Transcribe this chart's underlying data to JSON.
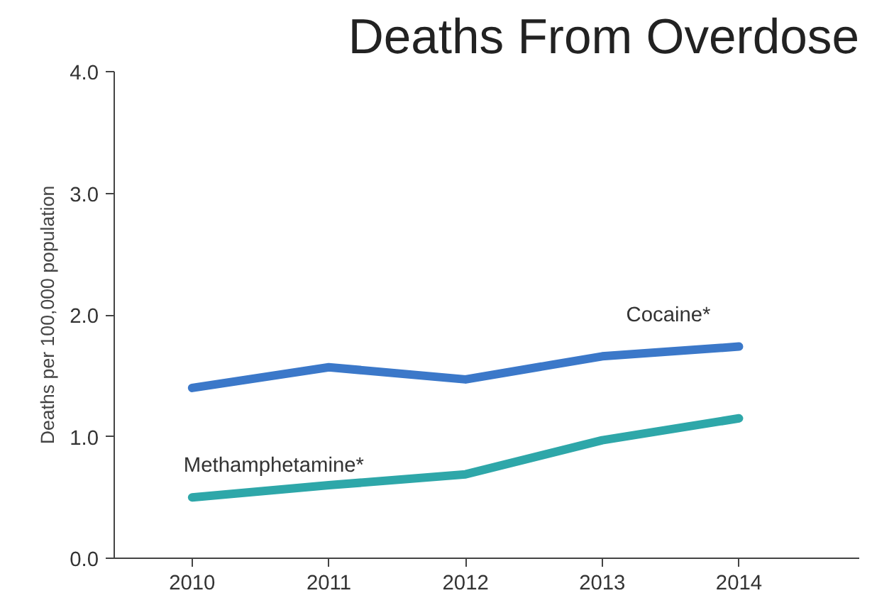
{
  "chart_data": {
    "type": "line",
    "title": "Deaths From Overdose",
    "ylabel": "Deaths per 100,000 population",
    "x": [
      2010,
      2011,
      2012,
      2013,
      2014
    ],
    "series": [
      {
        "name": "Cocaine*",
        "color": "#3b78c9",
        "values": [
          1.4,
          1.57,
          1.47,
          1.66,
          1.74
        ]
      },
      {
        "name": "Methamphetamine*",
        "color": "#2ea7a9",
        "values": [
          0.5,
          0.6,
          0.69,
          0.97,
          1.15
        ]
      }
    ],
    "xlim": [
      2009.43,
      2014.88
    ],
    "xticks": [
      2010,
      2011,
      2012,
      2013,
      2014
    ],
    "ylim": [
      0,
      4
    ],
    "yticks": [
      {
        "value": 0,
        "label": "0.0"
      },
      {
        "value": 1,
        "label": "1.0"
      },
      {
        "value": 2,
        "label": "2.0"
      },
      {
        "value": 3,
        "label": "3.0"
      },
      {
        "value": 4,
        "label": "4.0"
      }
    ],
    "grid": false,
    "marker": "none",
    "line_style": "solid"
  }
}
